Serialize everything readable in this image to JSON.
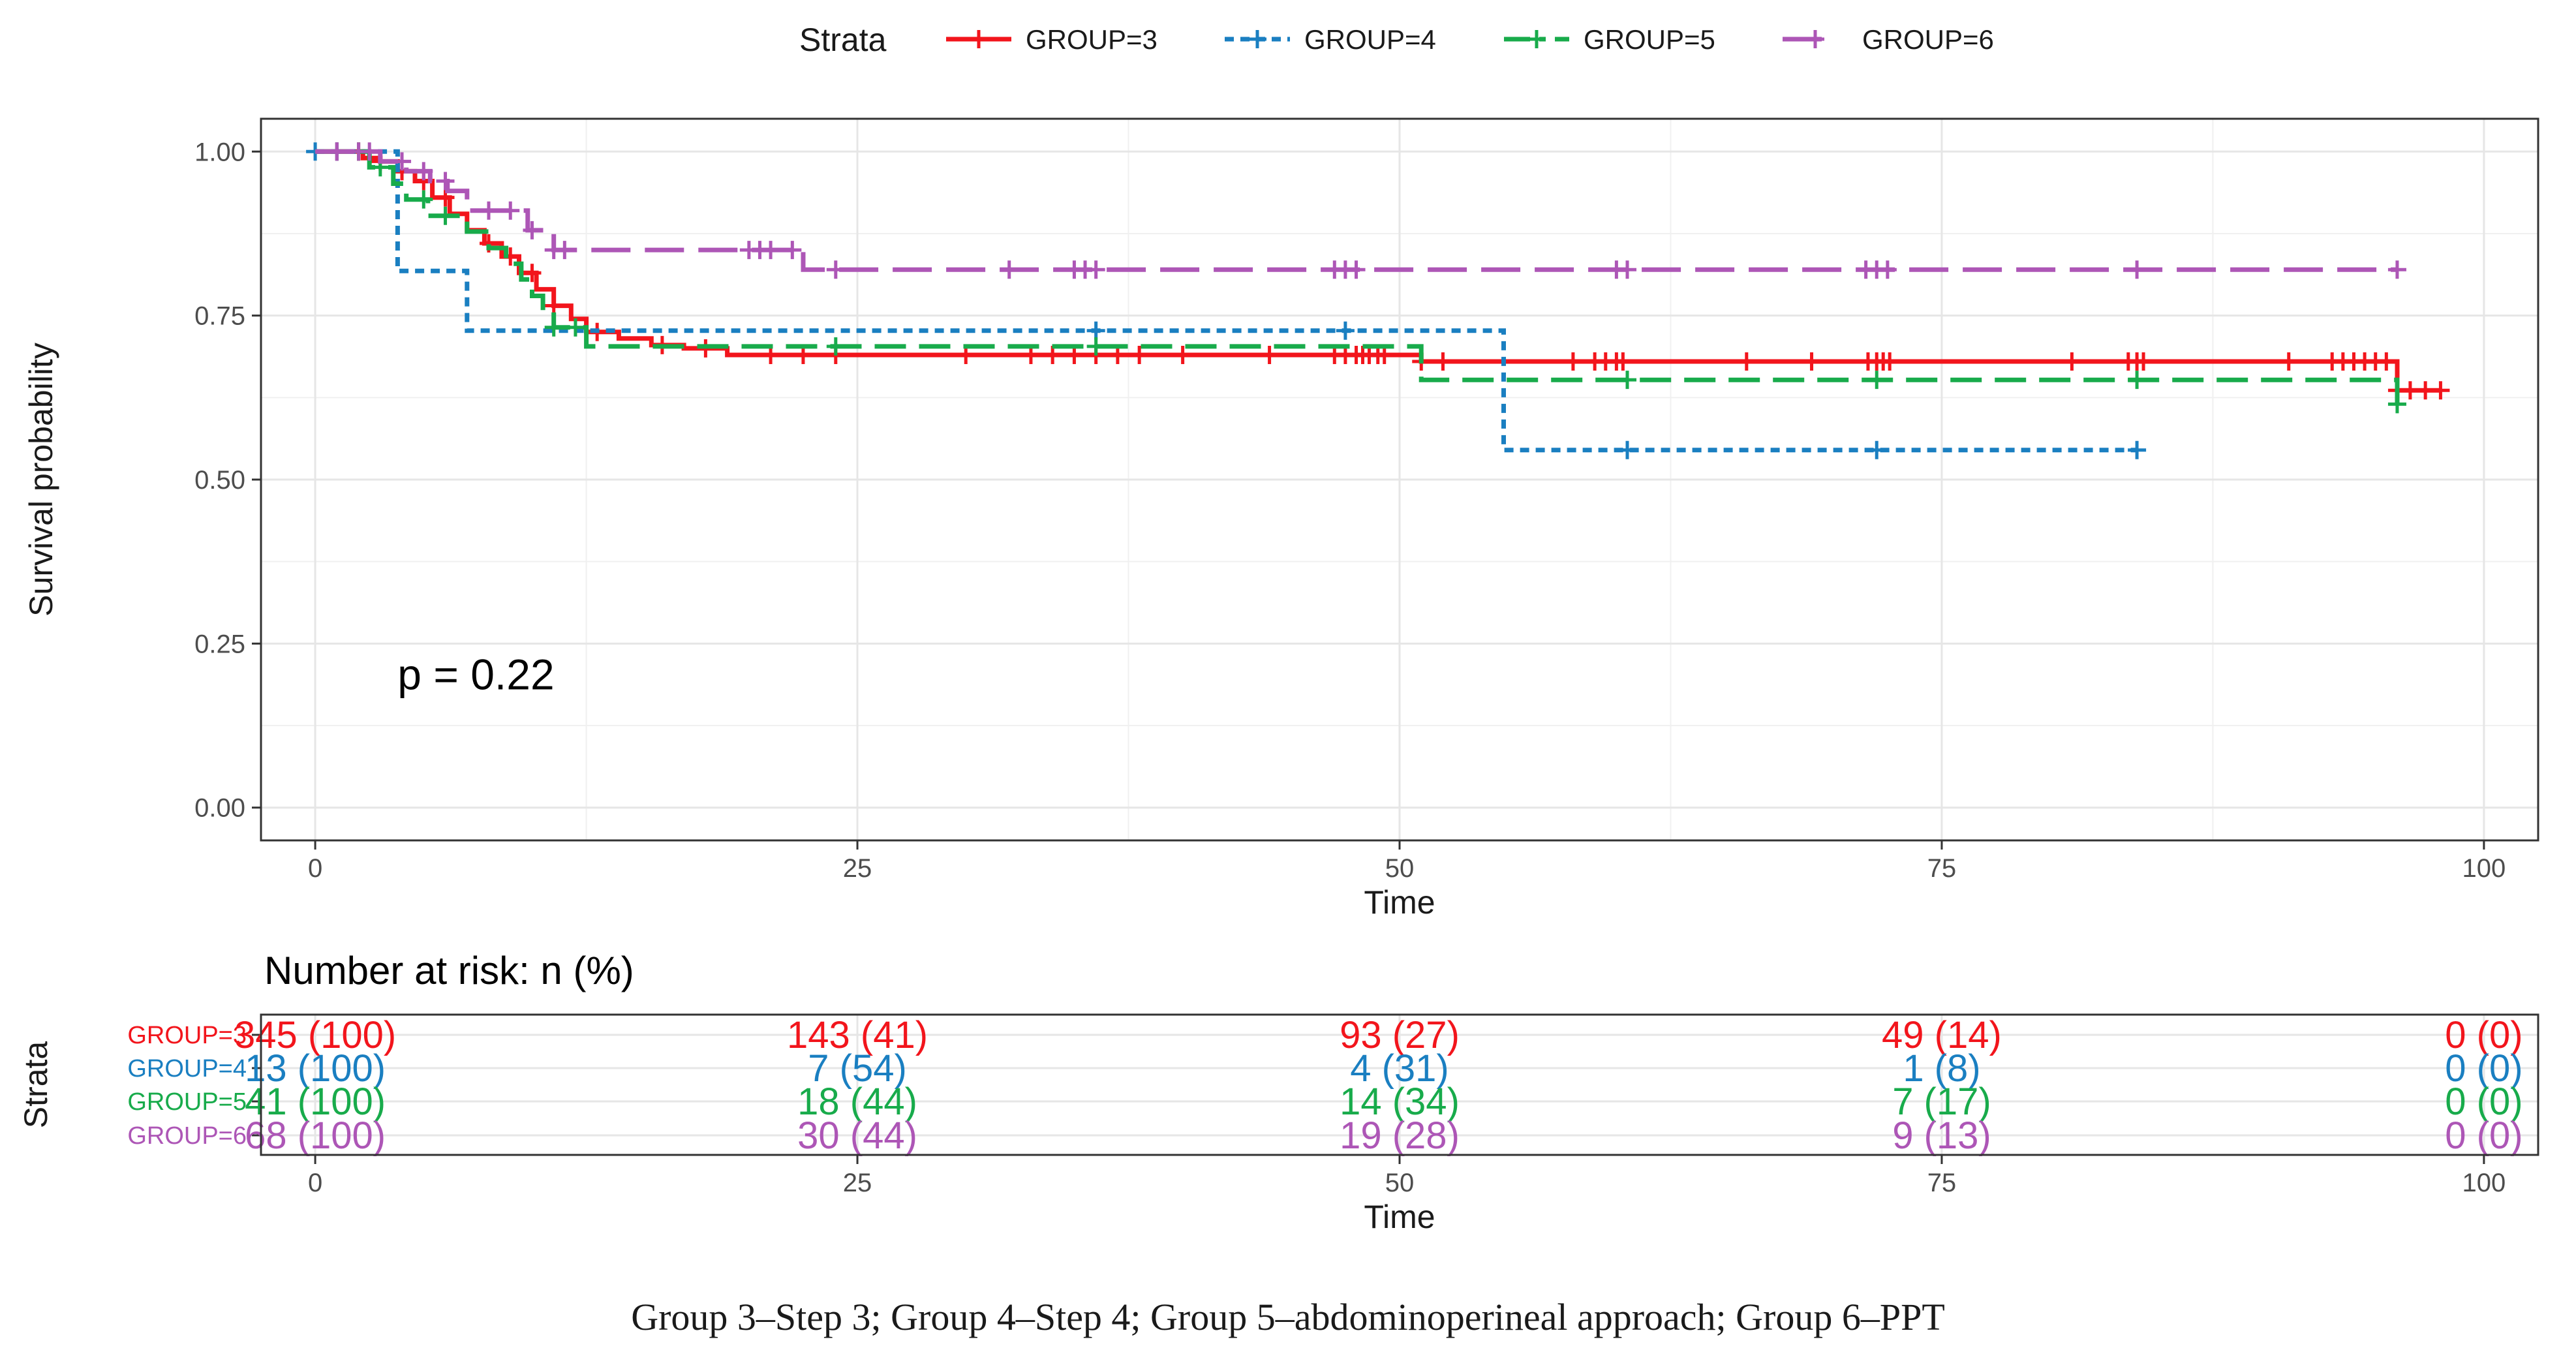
{
  "chart_data": {
    "type": "line",
    "subtype": "kaplan-meier",
    "legend": {
      "title": "Strata",
      "placement": "top"
    },
    "xlabel": "Time",
    "ylabel": "Survival probability",
    "xlim": [
      -2.5,
      102.5
    ],
    "ylim": [
      -0.05,
      1.05
    ],
    "xticks": [
      0,
      25,
      50,
      75,
      100
    ],
    "yticks": [
      0.0,
      0.25,
      0.5,
      0.75,
      1.0
    ],
    "ytick_labels": [
      "0.00",
      "0.25",
      "0.50",
      "0.75",
      "1.00"
    ],
    "pvalue_label": "p = 0.22",
    "pvalue_pos": [
      5,
      0.2
    ],
    "series": [
      {
        "name": "GROUP=3",
        "color": "#f2151c",
        "dash": "",
        "steps": [
          [
            0,
            1.0
          ],
          [
            2.2,
            0.99
          ],
          [
            3,
            0.985
          ],
          [
            3.8,
            0.97
          ],
          [
            4.6,
            0.955
          ],
          [
            5.4,
            0.93
          ],
          [
            6.2,
            0.905
          ],
          [
            7,
            0.88
          ],
          [
            7.8,
            0.86
          ],
          [
            8.6,
            0.84
          ],
          [
            9.4,
            0.815
          ],
          [
            10.2,
            0.79
          ],
          [
            11,
            0.765
          ],
          [
            11.8,
            0.745
          ],
          [
            12.5,
            0.725
          ],
          [
            14,
            0.715
          ],
          [
            15.5,
            0.705
          ],
          [
            17,
            0.7
          ],
          [
            19,
            0.69
          ],
          [
            51,
            0.68
          ],
          [
            96,
            0.636
          ],
          [
            98,
            0.636
          ]
        ],
        "censor": [
          1,
          2,
          3,
          4,
          5,
          6,
          8,
          9,
          10,
          11,
          13,
          16,
          18,
          21,
          22.5,
          24,
          30,
          33,
          34,
          35,
          36,
          37,
          38,
          40,
          44,
          47,
          47.5,
          48,
          48.3,
          48.6,
          49,
          49.3,
          51,
          52,
          58,
          59,
          59.5,
          60,
          60.3,
          66,
          69,
          71.6,
          72,
          72.3,
          72.6,
          81,
          83.6,
          84,
          84.3,
          91,
          93,
          93.5,
          94,
          94.5,
          95,
          95.5,
          96,
          96.6,
          97.3,
          98
        ]
      },
      {
        "name": "GROUP=4",
        "color": "#1a7fc1",
        "dash": "14,10",
        "steps": [
          [
            0,
            1.0
          ],
          [
            3.8,
            0.818
          ],
          [
            7,
            0.727
          ],
          [
            54.8,
            0.545
          ],
          [
            84,
            0.545
          ]
        ],
        "censor": [
          0,
          1,
          36,
          47.5,
          60.5,
          72,
          84
        ]
      },
      {
        "name": "GROUP=5",
        "color": "#18ab4b",
        "dash": "48,20",
        "steps": [
          [
            0,
            1.0
          ],
          [
            2.5,
            0.976
          ],
          [
            3.6,
            0.951
          ],
          [
            4.2,
            0.927
          ],
          [
            5.2,
            0.902
          ],
          [
            7,
            0.878
          ],
          [
            8,
            0.853
          ],
          [
            8.8,
            0.829
          ],
          [
            9.5,
            0.805
          ],
          [
            10,
            0.78
          ],
          [
            10.5,
            0.756
          ],
          [
            11,
            0.732
          ],
          [
            12.5,
            0.703
          ],
          [
            51,
            0.652
          ],
          [
            96,
            0.615
          ]
        ],
        "censor": [
          2,
          3,
          5,
          6,
          11,
          12,
          24,
          36,
          60.5,
          72,
          84,
          96
        ]
      },
      {
        "name": "GROUP=6",
        "color": "#ad56b6",
        "dash": "60,22",
        "steps": [
          [
            0,
            1.0
          ],
          [
            3,
            0.985
          ],
          [
            4.2,
            0.97
          ],
          [
            5.3,
            0.955
          ],
          [
            6.1,
            0.94
          ],
          [
            7,
            0.91
          ],
          [
            9.8,
            0.88
          ],
          [
            11,
            0.85
          ],
          [
            22.5,
            0.82
          ],
          [
            96,
            0.82
          ]
        ],
        "censor": [
          1,
          2,
          2.5,
          4,
          5,
          6,
          8,
          9,
          10,
          11,
          11.5,
          20,
          20.5,
          21,
          22,
          24,
          32,
          35,
          35.5,
          36,
          47,
          47.5,
          48,
          60,
          60.5,
          71.5,
          72,
          72.5,
          84,
          96
        ]
      }
    ],
    "risk_table": {
      "title": "Number at risk: n (%)",
      "ylabel": "Strata",
      "xlabel": "Time",
      "times": [
        0,
        25,
        50,
        75,
        100
      ],
      "rows": [
        {
          "name": "GROUP=3",
          "cells": [
            "345 (100)",
            "143 (41)",
            "93 (27)",
            "49 (14)",
            "0 (0)"
          ]
        },
        {
          "name": "GROUP=4",
          "cells": [
            "13 (100)",
            "7 (54)",
            "4 (31)",
            "1 (8)",
            "0 (0)"
          ]
        },
        {
          "name": "GROUP=5",
          "cells": [
            "41 (100)",
            "18 (44)",
            "14 (34)",
            "7 (17)",
            "0 (0)"
          ]
        },
        {
          "name": "GROUP=6",
          "cells": [
            "68 (100)",
            "30 (44)",
            "19 (28)",
            "9 (13)",
            "0 (0)"
          ]
        }
      ]
    }
  },
  "caption": "Group 3–Step 3; Group 4–Step 4; Group 5–abdominoperineal approach; Group 6–PPT"
}
